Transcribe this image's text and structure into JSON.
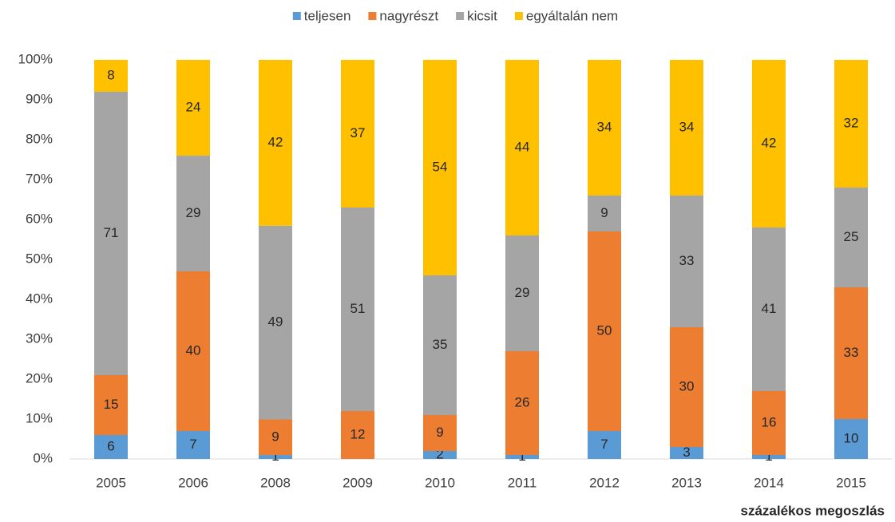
{
  "chart_data": {
    "type": "bar",
    "stacking": "percent",
    "categories": [
      "2005",
      "2006",
      "2008",
      "2009",
      "2010",
      "2011",
      "2012",
      "2013",
      "2014",
      "2015"
    ],
    "series": [
      {
        "name": "teljesen",
        "color": "#5b9bd5",
        "values": [
          6,
          7,
          1,
          null,
          2,
          1,
          7,
          3,
          1,
          10
        ]
      },
      {
        "name": "nagyrészt",
        "color": "#ed7d31",
        "values": [
          15,
          40,
          9,
          12,
          9,
          26,
          50,
          30,
          16,
          33
        ]
      },
      {
        "name": "kicsit",
        "color": "#a5a5a5",
        "values": [
          71,
          29,
          49,
          51,
          35,
          29,
          9,
          33,
          41,
          25
        ]
      },
      {
        "name": "egyáltalán nem",
        "color": "#ffc000",
        "values": [
          8,
          24,
          42,
          37,
          54,
          44,
          34,
          34,
          42,
          32
        ]
      }
    ],
    "ylim": [
      0,
      100
    ],
    "yticks": [
      {
        "value": 0,
        "label": "0%"
      },
      {
        "value": 10,
        "label": "10%"
      },
      {
        "value": 20,
        "label": "20%"
      },
      {
        "value": 30,
        "label": "30%"
      },
      {
        "value": 40,
        "label": "40%"
      },
      {
        "value": 50,
        "label": "50%"
      },
      {
        "value": 60,
        "label": "60%"
      },
      {
        "value": 70,
        "label": "70%"
      },
      {
        "value": 80,
        "label": "80%"
      },
      {
        "value": 90,
        "label": "90%"
      },
      {
        "value": 100,
        "label": "100%"
      }
    ],
    "xlabel": "százalékos megoszlás",
    "grid": false,
    "legend": "top"
  }
}
